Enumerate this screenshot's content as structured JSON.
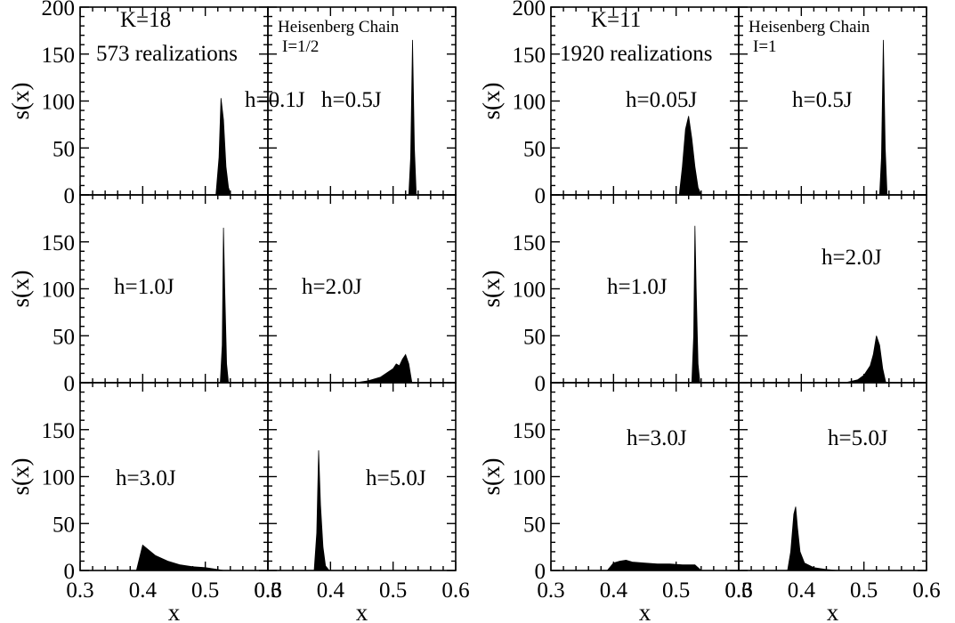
{
  "chart_data": {
    "type": "area",
    "x_ticks": [
      "0.3",
      "0.4",
      "0.5",
      "0.6"
    ],
    "y_ticks_top": [
      "0",
      "50",
      "100",
      "150",
      "200"
    ],
    "y_ticks": [
      "0",
      "50",
      "100",
      "150"
    ],
    "xlabel": "x",
    "ylabel": "s(x)",
    "xlim": [
      0.3,
      0.6
    ],
    "ylim": [
      0,
      200
    ],
    "grid": false,
    "groups": [
      {
        "header": "K=18",
        "realizations": "573 realizations",
        "model": "Heisenberg Chain",
        "spin": "I=1/2",
        "panels": [
          {
            "label": "h=0.1J",
            "x": [
              0.517,
              0.522,
              0.525,
              0.529,
              0.533,
              0.537,
              0.541
            ],
            "y": [
              0,
              40,
              103,
              80,
              30,
              8,
              0
            ]
          },
          {
            "label": "h=0.5J",
            "x": [
              0.525,
              0.528,
              0.531,
              0.534,
              0.537
            ],
            "y": [
              0,
              40,
              165,
              50,
              0
            ]
          },
          {
            "label": "h=1.0J",
            "x": [
              0.524,
              0.527,
              0.529,
              0.531,
              0.534,
              0.537
            ],
            "y": [
              0,
              40,
              165,
              100,
              20,
              0
            ]
          },
          {
            "label": "h=2.0J",
            "x": [
              0.44,
              0.46,
              0.48,
              0.5,
              0.505,
              0.51,
              0.515,
              0.52,
              0.525,
              0.53
            ],
            "y": [
              0,
              2,
              6,
              15,
              20,
              18,
              25,
              30,
              20,
              0
            ]
          },
          {
            "label": "h=3.0J",
            "x": [
              0.39,
              0.4,
              0.42,
              0.44,
              0.46,
              0.48,
              0.5,
              0.52,
              0.53
            ],
            "y": [
              0,
              27,
              16,
              10,
              6,
              4,
              3,
              1,
              0
            ]
          },
          {
            "label": "h=5.0J",
            "x": [
              0.374,
              0.378,
              0.381,
              0.384,
              0.388,
              0.392,
              0.398
            ],
            "y": [
              0,
              40,
              128,
              70,
              25,
              5,
              0
            ]
          }
        ]
      },
      {
        "header": "K=11",
        "realizations": "1920 realizations",
        "model": "Heisenberg Chain",
        "spin": "I=1",
        "panels": [
          {
            "label": "h=0.05J",
            "x": [
              0.505,
              0.51,
              0.515,
              0.52,
              0.525,
              0.53,
              0.535,
              0.54
            ],
            "y": [
              0,
              30,
              70,
              84,
              60,
              30,
              8,
              0
            ]
          },
          {
            "label": "h=0.5J",
            "x": [
              0.525,
              0.528,
              0.531,
              0.534,
              0.537
            ],
            "y": [
              0,
              40,
              165,
              50,
              0
            ]
          },
          {
            "label": "h=1.0J",
            "x": [
              0.525,
              0.528,
              0.53,
              0.532,
              0.535,
              0.538
            ],
            "y": [
              0,
              50,
              167,
              100,
              20,
              0
            ]
          },
          {
            "label": "h=2.0J",
            "x": [
              0.47,
              0.49,
              0.5,
              0.51,
              0.515,
              0.52,
              0.525,
              0.53,
              0.535
            ],
            "y": [
              0,
              3,
              8,
              18,
              30,
              50,
              40,
              15,
              0
            ]
          },
          {
            "label": "h=3.0J",
            "x": [
              0.39,
              0.4,
              0.41,
              0.42,
              0.43,
              0.45,
              0.47,
              0.49,
              0.51,
              0.53,
              0.54
            ],
            "y": [
              0,
              8,
              10,
              11,
              9,
              8,
              7,
              7,
              6,
              6,
              0
            ]
          },
          {
            "label": "h=5.0J",
            "x": [
              0.378,
              0.383,
              0.388,
              0.391,
              0.394,
              0.398,
              0.405,
              0.42,
              0.44,
              0.46
            ],
            "y": [
              0,
              20,
              60,
              68,
              45,
              20,
              8,
              3,
              1,
              0
            ]
          }
        ]
      }
    ]
  }
}
